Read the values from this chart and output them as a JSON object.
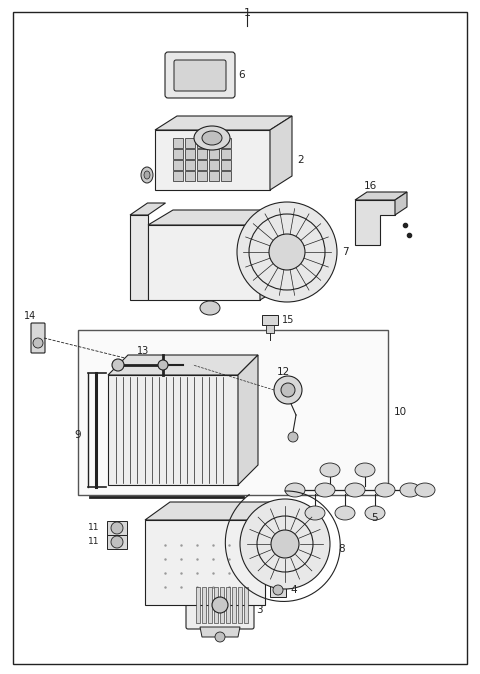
{
  "bg": "#ffffff",
  "fg": "#222222",
  "gray1": "#cccccc",
  "gray2": "#999999",
  "gray3": "#666666",
  "fig_w": 4.8,
  "fig_h": 6.74,
  "dpi": 100
}
